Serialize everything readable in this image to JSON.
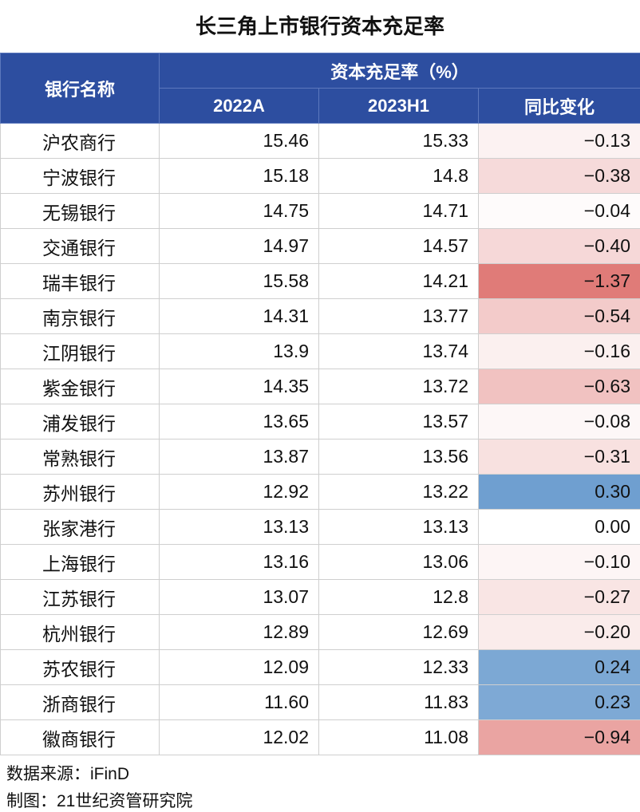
{
  "title": "长三角上市银行资本充足率",
  "header": {
    "bank_col": "银行名称",
    "group": "资本充足率（%）",
    "col_2022": "2022A",
    "col_2023": "2023H1",
    "col_change": "同比变化"
  },
  "chart_data": {
    "type": "table",
    "columns": [
      "银行名称",
      "2022A",
      "2023H1",
      "同比变化"
    ],
    "rows": [
      {
        "bank": "沪农商行",
        "y2022": "15.46",
        "y2023": "15.33",
        "change": "−0.13",
        "change_value": -0.13
      },
      {
        "bank": "宁波银行",
        "y2022": "15.18",
        "y2023": "14.8",
        "change": "−0.38",
        "change_value": -0.38
      },
      {
        "bank": "无锡银行",
        "y2022": "14.75",
        "y2023": "14.71",
        "change": "−0.04",
        "change_value": -0.04
      },
      {
        "bank": "交通银行",
        "y2022": "14.97",
        "y2023": "14.57",
        "change": "−0.40",
        "change_value": -0.4
      },
      {
        "bank": "瑞丰银行",
        "y2022": "15.58",
        "y2023": "14.21",
        "change": "−1.37",
        "change_value": -1.37
      },
      {
        "bank": "南京银行",
        "y2022": "14.31",
        "y2023": "13.77",
        "change": "−0.54",
        "change_value": -0.54
      },
      {
        "bank": "江阴银行",
        "y2022": "13.9",
        "y2023": "13.74",
        "change": "−0.16",
        "change_value": -0.16
      },
      {
        "bank": "紫金银行",
        "y2022": "14.35",
        "y2023": "13.72",
        "change": "−0.63",
        "change_value": -0.63
      },
      {
        "bank": "浦发银行",
        "y2022": "13.65",
        "y2023": "13.57",
        "change": "−0.08",
        "change_value": -0.08
      },
      {
        "bank": "常熟银行",
        "y2022": "13.87",
        "y2023": "13.56",
        "change": "−0.31",
        "change_value": -0.31
      },
      {
        "bank": "苏州银行",
        "y2022": "12.92",
        "y2023": "13.22",
        "change": "0.30",
        "change_value": 0.3
      },
      {
        "bank": "张家港行",
        "y2022": "13.13",
        "y2023": "13.13",
        "change": "0.00",
        "change_value": 0.0
      },
      {
        "bank": "上海银行",
        "y2022": "13.16",
        "y2023": "13.06",
        "change": "−0.10",
        "change_value": -0.1
      },
      {
        "bank": "江苏银行",
        "y2022": "13.07",
        "y2023": "12.8",
        "change": "−0.27",
        "change_value": -0.27
      },
      {
        "bank": "杭州银行",
        "y2022": "12.89",
        "y2023": "12.69",
        "change": "−0.20",
        "change_value": -0.2
      },
      {
        "bank": "苏农银行",
        "y2022": "12.09",
        "y2023": "12.33",
        "change": "0.24",
        "change_value": 0.24
      },
      {
        "bank": "浙商银行",
        "y2022": "11.60",
        "y2023": "11.83",
        "change": "0.23",
        "change_value": 0.23
      },
      {
        "bank": "徽商银行",
        "y2022": "12.02",
        "y2023": "11.08",
        "change": "−0.94",
        "change_value": -0.94
      }
    ]
  },
  "colors": {
    "header_bg": "#2d4ea0",
    "negative_strong": "#e07b78",
    "positive_strong": "#6f9fd0"
  },
  "footer": {
    "source": "数据来源：iFinD",
    "maker": "制图：21世纪资管研究院"
  }
}
